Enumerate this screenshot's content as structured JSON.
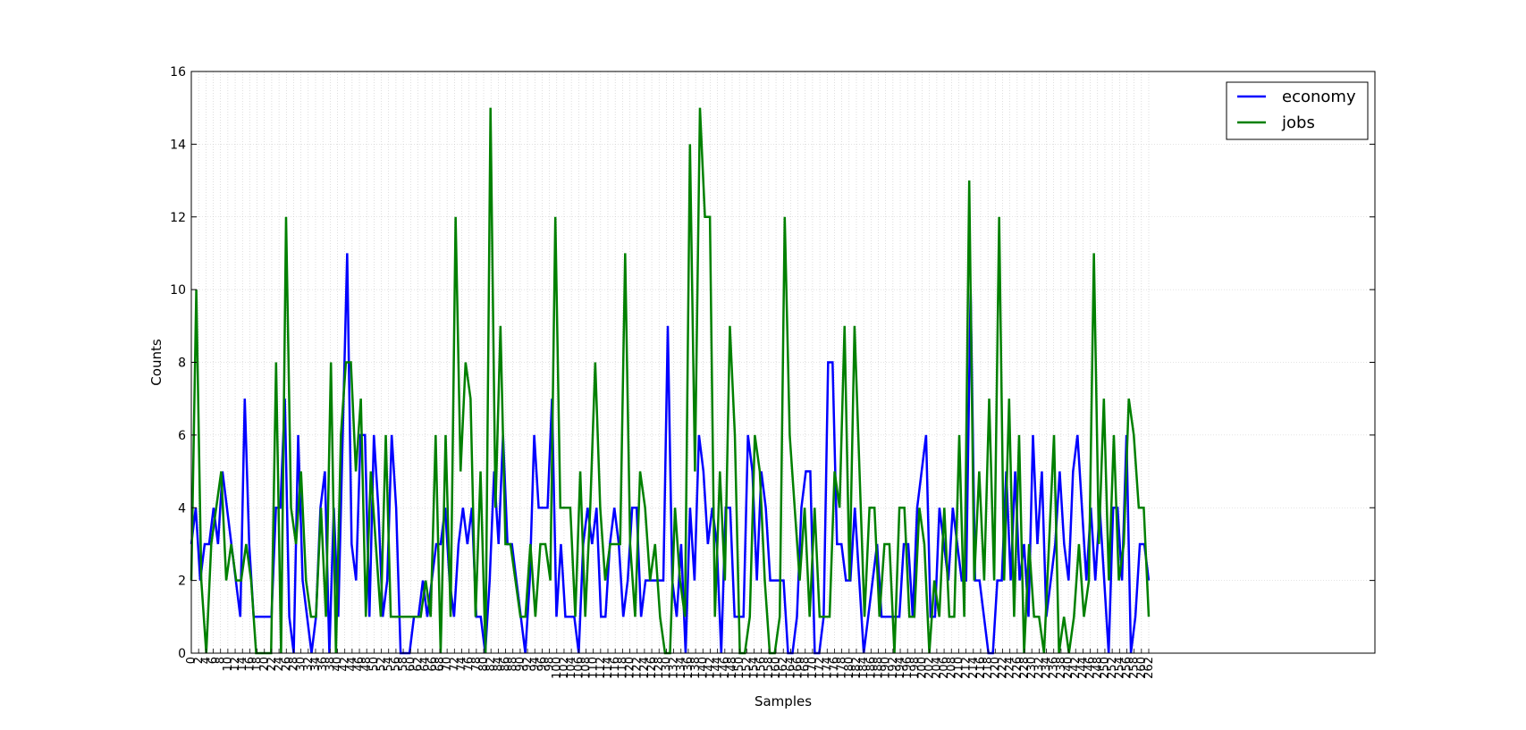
{
  "chart_data": {
    "type": "line",
    "title": "",
    "xlabel": "Samples",
    "ylabel": "Counts",
    "xlim": [
      0,
      262
    ],
    "ylim": [
      0,
      16
    ],
    "yticks": [
      0,
      2,
      4,
      6,
      8,
      10,
      12,
      14,
      16
    ],
    "xtick_step": 2,
    "grid": true,
    "legend_position": "top-right",
    "series": [
      {
        "name": "economy",
        "color": "#0000ff",
        "values": [
          3,
          4,
          2,
          3,
          3,
          4,
          3,
          5,
          4,
          3,
          2,
          1,
          7,
          3,
          1,
          1,
          1,
          1,
          1,
          4,
          4,
          7,
          1,
          0,
          6,
          2,
          1,
          0,
          1,
          4,
          5,
          0,
          4,
          1,
          6,
          11,
          3,
          2,
          6,
          6,
          1,
          6,
          4,
          1,
          2,
          6,
          4,
          0,
          0,
          0,
          1,
          1,
          2,
          1,
          2,
          3,
          3,
          4,
          2,
          1,
          3,
          4,
          3,
          4,
          1,
          1,
          0,
          2,
          5,
          3,
          6,
          3,
          3,
          2,
          1,
          0,
          2,
          6,
          4,
          4,
          4,
          7,
          1,
          3,
          1,
          1,
          1,
          0,
          3,
          4,
          3,
          4,
          1,
          1,
          3,
          4,
          3,
          1,
          2,
          4,
          4,
          1,
          2,
          2,
          2,
          2,
          2,
          9,
          2,
          1,
          3,
          0,
          4,
          2,
          6,
          5,
          3,
          4,
          3,
          0,
          4,
          4,
          1,
          1,
          1,
          6,
          5,
          2,
          5,
          4,
          2,
          2,
          2,
          2,
          0,
          0,
          1,
          4,
          5,
          5,
          0,
          0,
          1,
          8,
          8,
          3,
          3,
          2,
          2,
          4,
          2,
          0,
          1,
          2,
          3,
          1,
          1,
          1,
          1,
          1,
          3,
          3,
          1,
          4,
          5,
          6,
          1,
          1,
          4,
          3,
          2,
          4,
          3,
          2,
          2,
          10,
          2,
          2,
          1,
          0,
          0,
          2,
          2,
          5,
          2,
          5,
          2,
          3,
          1,
          6,
          3,
          5,
          1,
          2,
          3,
          5,
          3,
          2,
          5,
          6,
          4,
          2,
          4,
          2,
          4,
          2,
          0,
          4,
          4,
          2,
          6,
          0,
          1,
          3,
          3,
          2
        ],
        "dense_to_index": 262
      },
      {
        "name": "jobs",
        "color": "#008000",
        "values": [
          2,
          10,
          2,
          0,
          3,
          4,
          5,
          2,
          3,
          2,
          2,
          3,
          2,
          0,
          0,
          0,
          0,
          8,
          0,
          12,
          4,
          3,
          5,
          2,
          1,
          1,
          4,
          1,
          8,
          0,
          6,
          8,
          8,
          5,
          7,
          1,
          5,
          3,
          1,
          6,
          1,
          1,
          1,
          1,
          1,
          1,
          1,
          2,
          1,
          6,
          0,
          6,
          1,
          12,
          5,
          8,
          7,
          1,
          5,
          0,
          15,
          4,
          9,
          3,
          3,
          2,
          1,
          1,
          3,
          1,
          3,
          3,
          2,
          12,
          4,
          4,
          4,
          1,
          5,
          1,
          4,
          8,
          4,
          2,
          3,
          3,
          3,
          11,
          3,
          1,
          5,
          4,
          2,
          3,
          1,
          0,
          0,
          4,
          2,
          1,
          14,
          5,
          15,
          12,
          12,
          1,
          5,
          2,
          9,
          6,
          0,
          0,
          1,
          6,
          5,
          2,
          0,
          0,
          1,
          12,
          6,
          4,
          2,
          4,
          1,
          4,
          1,
          1,
          1,
          5,
          4,
          9,
          2,
          9,
          5,
          1,
          4,
          4,
          1,
          3,
          3,
          0,
          4,
          4,
          1,
          1,
          4,
          3,
          0,
          2,
          1,
          4,
          1,
          1,
          6,
          1,
          13,
          2,
          5,
          2,
          7,
          2,
          12,
          2,
          7,
          1,
          6,
          0,
          3,
          1,
          1,
          0,
          3,
          6,
          0,
          1,
          0,
          1,
          3,
          1,
          2,
          11,
          3,
          7,
          2,
          6,
          2,
          3,
          7,
          6,
          4,
          4,
          1
        ],
        "dense_to_index": 262
      }
    ]
  }
}
